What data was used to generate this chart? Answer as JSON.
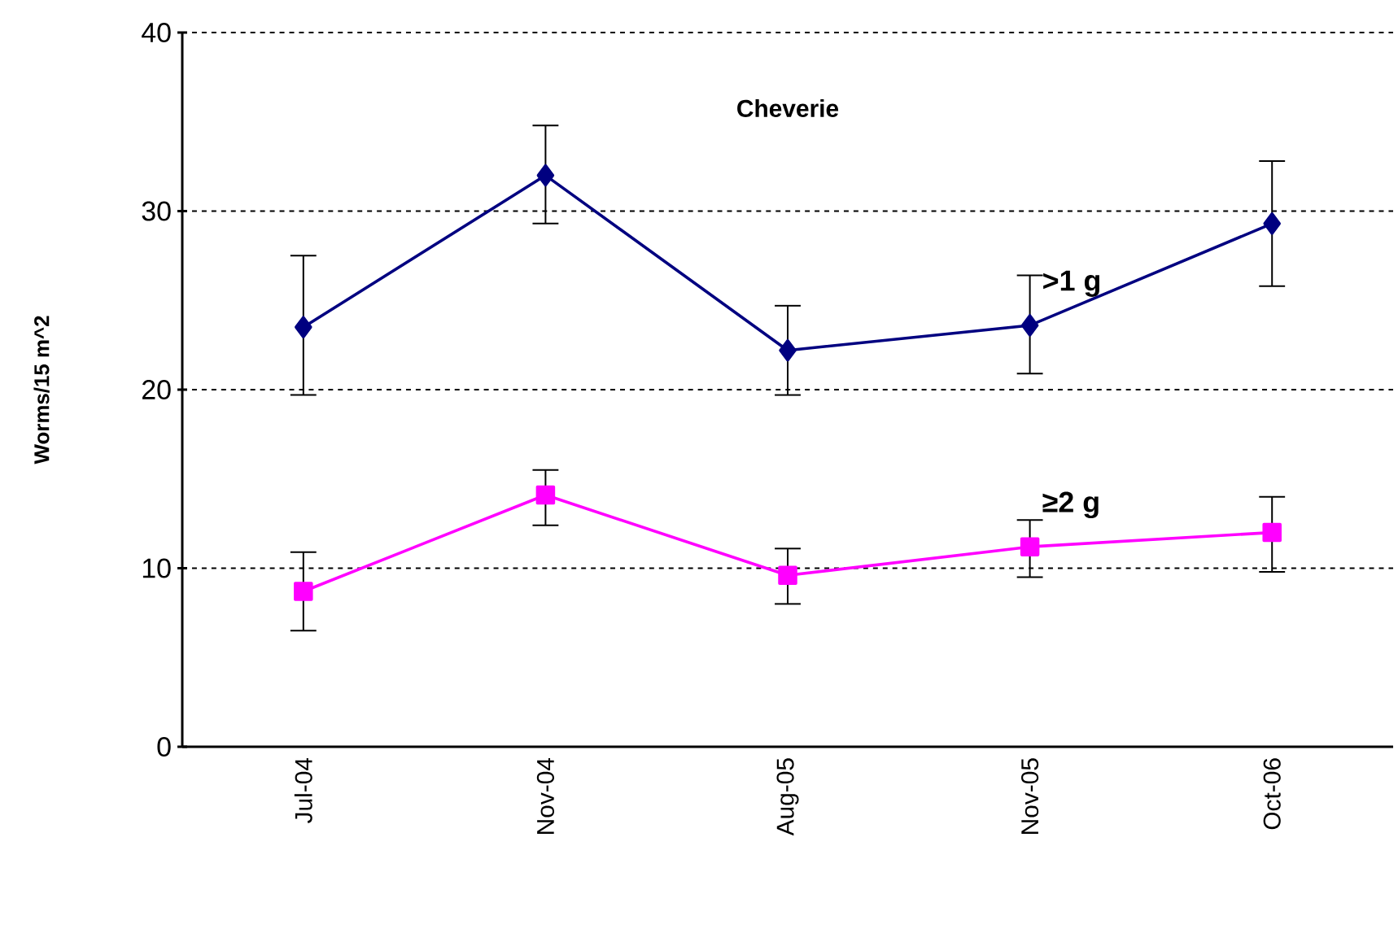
{
  "chart_data": {
    "type": "line",
    "title": "Cheverie",
    "ylabel": "Worms/15 m^2",
    "categories": [
      "Jul-04",
      "Nov-04",
      "Aug-05",
      "Nov-05",
      "Oct-06"
    ],
    "series": [
      {
        "name": ">1 g",
        "color": "#000080",
        "marker": "diamond",
        "values": [
          23.5,
          32.0,
          22.2,
          23.6,
          29.3
        ],
        "errors": [
          [
            19.7,
            27.5
          ],
          [
            29.3,
            34.8
          ],
          [
            19.7,
            24.7
          ],
          [
            20.9,
            26.4
          ],
          [
            25.8,
            32.8
          ]
        ]
      },
      {
        "name": "≥2 g",
        "color": "#ff00ff",
        "marker": "square",
        "values": [
          8.7,
          14.1,
          9.6,
          11.2,
          12.0
        ],
        "errors": [
          [
            6.5,
            10.9
          ],
          [
            12.4,
            15.5
          ],
          [
            8.0,
            11.1
          ],
          [
            9.5,
            12.7
          ],
          [
            9.8,
            14.0
          ]
        ]
      }
    ],
    "ylim": [
      0,
      40
    ],
    "yticks": [
      0,
      10,
      20,
      30,
      40
    ],
    "grid": "y",
    "legend": false,
    "line_style": "solid"
  }
}
